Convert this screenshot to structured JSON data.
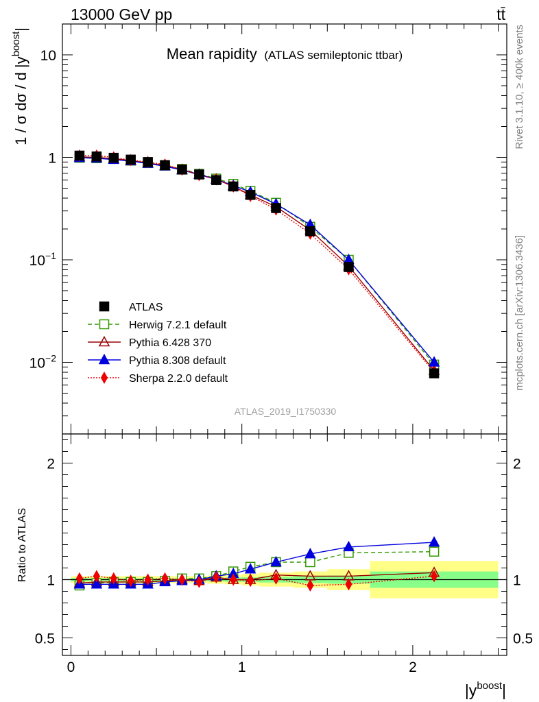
{
  "header": {
    "left_label": "13000 GeV pp",
    "right_label": "tt̄"
  },
  "side_labels": {
    "rivet": "Rivet 3.1.10, ≥ 400k events",
    "mcplots": "mcplots.cern.ch [arXiv:1306.3436]"
  },
  "chart_data": [
    {
      "type": "line",
      "panel": "main",
      "title": "Mean rapidity",
      "subtitle": "(ATLAS semileptonic ttbar)",
      "ylabel": "1 / σ dσ / d |y^boost|",
      "watermark": "ATLAS_2019_I1750330",
      "yscale": "log",
      "ylim": [
        0.002,
        20
      ],
      "xlim": [
        -0.05,
        2.55
      ],
      "legend_position": "middle-left",
      "x": [
        0.05,
        0.15,
        0.25,
        0.35,
        0.45,
        0.55,
        0.65,
        0.75,
        0.85,
        0.95,
        1.05,
        1.2,
        1.4,
        1.625,
        2.125
      ],
      "series": [
        {
          "name": "ATLAS",
          "color": "#000000",
          "marker": "filled-square",
          "values": [
            1.04,
            1.02,
            0.99,
            0.95,
            0.9,
            0.84,
            0.76,
            0.68,
            0.6,
            0.52,
            0.43,
            0.32,
            0.19,
            0.085,
            0.0078
          ]
        },
        {
          "name": "Herwig 7.2.1 default",
          "color": "#339900",
          "marker": "open-square",
          "line": "dashed",
          "values": [
            0.99,
            0.98,
            0.97,
            0.93,
            0.88,
            0.83,
            0.77,
            0.69,
            0.62,
            0.55,
            0.47,
            0.36,
            0.21,
            0.1,
            0.0095
          ]
        },
        {
          "name": "Pythia 6.428 370",
          "color": "#990000",
          "marker": "open-triangle",
          "line": "solid",
          "values": [
            1.01,
            1.0,
            0.97,
            0.93,
            0.88,
            0.83,
            0.76,
            0.68,
            0.61,
            0.52,
            0.43,
            0.33,
            0.195,
            0.087,
            0.0083
          ]
        },
        {
          "name": "Pythia 8.308 default",
          "color": "#0000dd",
          "marker": "filled-triangle",
          "line": "solid",
          "values": [
            0.99,
            0.98,
            0.95,
            0.92,
            0.87,
            0.82,
            0.75,
            0.68,
            0.61,
            0.53,
            0.46,
            0.35,
            0.22,
            0.1,
            0.01
          ]
        },
        {
          "name": "Sherpa 2.2.0 default",
          "color": "#ee0000",
          "marker": "filled-diamond",
          "line": "dotted",
          "values": [
            1.04,
            1.04,
            1.0,
            0.94,
            0.9,
            0.85,
            0.76,
            0.67,
            0.61,
            0.52,
            0.42,
            0.31,
            0.18,
            0.081,
            0.008
          ]
        }
      ]
    },
    {
      "type": "line",
      "panel": "ratio",
      "ylabel": "Ratio to ATLAS",
      "xlabel": "|y^boost|",
      "ylim": [
        0.35,
        2.25
      ],
      "xlim": [
        -0.05,
        2.55
      ],
      "xticks": [
        "0",
        "1",
        "2"
      ],
      "yticks": [
        "0.5",
        "1",
        "2"
      ],
      "x": [
        0.05,
        0.15,
        0.25,
        0.35,
        0.45,
        0.55,
        0.65,
        0.75,
        0.85,
        0.95,
        1.05,
        1.2,
        1.4,
        1.625,
        2.125
      ],
      "bins": [
        [
          0.0,
          0.1
        ],
        [
          0.1,
          0.2
        ],
        [
          0.2,
          0.3
        ],
        [
          0.3,
          0.4
        ],
        [
          0.4,
          0.5
        ],
        [
          0.5,
          0.6
        ],
        [
          0.6,
          0.7
        ],
        [
          0.7,
          0.8
        ],
        [
          0.8,
          0.9
        ],
        [
          0.9,
          1.0
        ],
        [
          1.0,
          1.1
        ],
        [
          1.1,
          1.3
        ],
        [
          1.3,
          1.5
        ],
        [
          1.5,
          1.75
        ],
        [
          1.75,
          2.5
        ]
      ],
      "band_stat": [
        0.015,
        0.012,
        0.012,
        0.012,
        0.012,
        0.012,
        0.012,
        0.012,
        0.015,
        0.018,
        0.02,
        0.025,
        0.03,
        0.035,
        0.07
      ],
      "band_total": [
        0.03,
        0.03,
        0.03,
        0.03,
        0.03,
        0.03,
        0.03,
        0.03,
        0.035,
        0.04,
        0.05,
        0.06,
        0.07,
        0.09,
        0.16
      ],
      "series": [
        {
          "name": "Herwig 7.2.1 default",
          "color": "#339900",
          "marker": "open-square",
          "line": "dashed",
          "values": [
            0.95,
            0.97,
            0.98,
            0.98,
            0.98,
            0.99,
            1.01,
            1.01,
            1.03,
            1.07,
            1.11,
            1.15,
            1.15,
            1.23,
            1.24
          ]
        },
        {
          "name": "Pythia 6.428 370",
          "color": "#990000",
          "marker": "open-triangle",
          "line": "solid",
          "values": [
            0.97,
            0.98,
            0.98,
            0.98,
            0.98,
            0.99,
            1.0,
            0.99,
            1.02,
            1.0,
            1.0,
            1.04,
            1.03,
            1.03,
            1.06
          ]
        },
        {
          "name": "Pythia 8.308 default",
          "color": "#0000dd",
          "marker": "filled-triangle",
          "line": "solid",
          "values": [
            0.96,
            0.96,
            0.96,
            0.96,
            0.96,
            0.98,
            0.99,
            1.0,
            1.03,
            1.05,
            1.09,
            1.15,
            1.22,
            1.28,
            1.32
          ]
        },
        {
          "name": "Sherpa 2.2.0 default",
          "color": "#ee0000",
          "marker": "filled-diamond",
          "line": "dotted",
          "values": [
            1.01,
            1.03,
            1.01,
            0.99,
            1.0,
            1.01,
            1.0,
            0.98,
            1.02,
            1.0,
            0.99,
            1.01,
            0.95,
            0.96,
            1.03
          ]
        }
      ]
    }
  ]
}
